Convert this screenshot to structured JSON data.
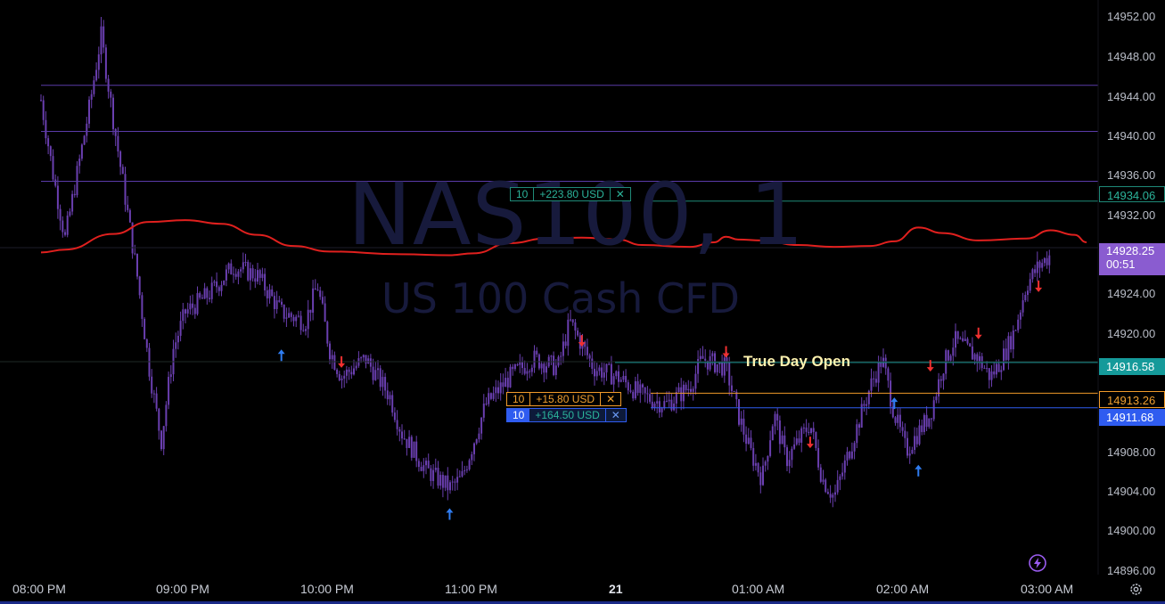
{
  "watermark": {
    "symbol": "NAS100, 1",
    "description": "US 100 Cash CFD"
  },
  "colors": {
    "background": "#000000",
    "candle": "#6a3fb0",
    "ma_line": "#e0201e",
    "horizontal_lines": "#5a3aa8",
    "take_profit": "#1f8a78",
    "limit_order": "#f09a2a",
    "position": "#2f5cf0",
    "current_price": "#8a5cd0",
    "true_day_open": "#159a9a",
    "arrow_up": "#2f7cf0",
    "arrow_down": "#f03030"
  },
  "price_axis": {
    "labels": [
      "14952.00",
      "14948.00",
      "14944.00",
      "14940.00",
      "14936.00",
      "14932.00",
      "14924.00",
      "14920.00",
      "14908.00",
      "14904.00",
      "14900.00",
      "14896.00"
    ]
  },
  "time_axis": {
    "labels": [
      "08:00 PM",
      "09:00 PM",
      "10:00 PM",
      "11:00 PM",
      "21",
      "01:00 AM",
      "02:00 AM",
      "03:00 AM"
    ]
  },
  "badges": {
    "take_profit_price": "14934.06",
    "current_price": "14928.25",
    "countdown": "00:51",
    "true_day_open_price": "14916.58",
    "limit_price": "14913.26",
    "position_price": "14911.68"
  },
  "orders": {
    "take_profit": {
      "qty": "10",
      "pnl": "+223.80 USD",
      "close": "✕"
    },
    "limit": {
      "qty": "10",
      "pnl": "+15.80 USD",
      "close": "✕"
    },
    "position": {
      "qty": "10",
      "pnl": "+164.50 USD",
      "close": "✕"
    }
  },
  "annotation": {
    "text": "True Day Open"
  },
  "icons": {
    "lightning": "lightning-icon",
    "settings": "gear-icon"
  },
  "chart_data": {
    "type": "candlestick",
    "symbol": "NAS100",
    "timeframe": "1",
    "ylim": [
      14894,
      14954
    ],
    "price_path": [
      [
        "08:00 PM",
        14945
      ],
      [
        "08:05 PM",
        14937
      ],
      [
        "08:10 PM",
        14930
      ],
      [
        "08:20 PM",
        14944
      ],
      [
        "08:25 PM",
        14952
      ],
      [
        "08:30 PM",
        14943
      ],
      [
        "08:40 PM",
        14926
      ],
      [
        "08:45 PM",
        14916
      ],
      [
        "08:50 PM",
        14908
      ],
      [
        "08:55 PM",
        14918
      ],
      [
        "09:00 PM",
        14922
      ],
      [
        "09:10 PM",
        14924
      ],
      [
        "09:20 PM",
        14927
      ],
      [
        "09:30 PM",
        14926
      ],
      [
        "09:40 PM",
        14922
      ],
      [
        "09:50 PM",
        14921
      ],
      [
        "09:55 PM",
        14925
      ],
      [
        "10:00 PM",
        14918
      ],
      [
        "10:05 PM",
        14915
      ],
      [
        "10:15 PM",
        14917
      ],
      [
        "10:25 PM",
        14913
      ],
      [
        "10:30 PM",
        14909
      ],
      [
        "10:40 PM",
        14905
      ],
      [
        "10:50 PM",
        14903
      ],
      [
        "10:55 PM",
        14904
      ],
      [
        "11:00 PM",
        14908
      ],
      [
        "11:05 PM",
        14912
      ],
      [
        "11:15 PM",
        14915
      ],
      [
        "11:25 PM",
        14917
      ],
      [
        "11:35 PM",
        14916
      ],
      [
        "11:40 PM",
        14921
      ],
      [
        "11:50 PM",
        14916
      ],
      [
        "12:00 AM",
        14915
      ],
      [
        "12:10 AM",
        14913
      ],
      [
        "12:20 AM",
        14912
      ],
      [
        "12:30 AM",
        14914
      ],
      [
        "12:35 AM",
        14917
      ],
      [
        "12:45 AM",
        14916
      ],
      [
        "12:50 AM",
        14911
      ],
      [
        "12:55 AM",
        14907
      ],
      [
        "01:00 AM",
        14904
      ],
      [
        "01:05 AM",
        14911
      ],
      [
        "01:10 AM",
        14906
      ],
      [
        "01:20 AM",
        14910
      ],
      [
        "01:25 AM",
        14904
      ],
      [
        "01:30 AM",
        14902
      ],
      [
        "01:35 AM",
        14906
      ],
      [
        "01:40 AM",
        14910
      ],
      [
        "01:45 AM",
        14914
      ],
      [
        "01:50 AM",
        14917
      ],
      [
        "01:55 AM",
        14911
      ],
      [
        "02:00 AM",
        14907
      ],
      [
        "02:05 AM",
        14909
      ],
      [
        "02:10 AM",
        14911
      ],
      [
        "02:15 AM",
        14916
      ],
      [
        "02:20 AM",
        14919
      ],
      [
        "02:30 AM",
        14917
      ],
      [
        "02:35 AM",
        14915
      ],
      [
        "02:40 AM",
        14917
      ],
      [
        "02:45 AM",
        14920
      ],
      [
        "02:50 AM",
        14925
      ],
      [
        "02:55 AM",
        14927
      ],
      [
        "03:00 AM",
        14928.25
      ]
    ],
    "moving_average": [
      [
        "08:00 PM",
        14928.5
      ],
      [
        "08:10 PM",
        14928.8
      ],
      [
        "08:30 PM",
        14930.5
      ],
      [
        "08:45 PM",
        14931.8
      ],
      [
        "09:00 PM",
        14932.0
      ],
      [
        "09:15 PM",
        14931.6
      ],
      [
        "09:30 PM",
        14930.4
      ],
      [
        "09:45 PM",
        14929.2
      ],
      [
        "10:00 PM",
        14928.6
      ],
      [
        "10:30 PM",
        14928.3
      ],
      [
        "10:50 PM",
        14928.2
      ],
      [
        "11:00 PM",
        14928.4
      ],
      [
        "11:15 PM",
        14929.5
      ],
      [
        "11:30 PM",
        14930.0
      ],
      [
        "11:45 PM",
        14930.1
      ],
      [
        "12:00 AM",
        14929.9
      ],
      [
        "12:10 AM",
        14929.3
      ],
      [
        "12:30 AM",
        14929.1
      ],
      [
        "12:40 AM",
        14929.6
      ],
      [
        "12:45 AM",
        14930.2
      ],
      [
        "12:50 AM",
        14929.9
      ],
      [
        "01:00 AM",
        14929.8
      ],
      [
        "01:15 AM",
        14929.3
      ],
      [
        "01:30 AM",
        14929.1
      ],
      [
        "01:45 AM",
        14929.2
      ],
      [
        "01:55 AM",
        14929.7
      ],
      [
        "02:05 AM",
        14931.2
      ],
      [
        "02:15 AM",
        14930.6
      ],
      [
        "02:30 AM",
        14929.8
      ],
      [
        "02:50 AM",
        14930.0
      ],
      [
        "03:00 AM",
        14930.9
      ],
      [
        "03:10 AM",
        14930.4
      ],
      [
        "03:15 AM",
        14929.6
      ]
    ],
    "horizontal_levels": [
      14946.6,
      14941.6,
      14936.2,
      14934.06,
      14916.58,
      14913.26,
      14911.68
    ],
    "arrows_up": [
      [
        "09:40 PM",
        14918
      ],
      [
        "10:50 PM",
        14900.8
      ],
      [
        "01:55 AM",
        14912.8
      ],
      [
        "02:05 AM",
        14905.5
      ]
    ],
    "arrows_down": [
      [
        "10:05 PM",
        14916
      ],
      [
        "11:45 PM",
        14918.3
      ],
      [
        "12:45 AM",
        14917.1
      ],
      [
        "01:20 AM",
        14907.3
      ],
      [
        "02:10 AM",
        14915.6
      ],
      [
        "02:30 AM",
        14919.1
      ],
      [
        "02:55 AM",
        14924.2
      ]
    ]
  }
}
